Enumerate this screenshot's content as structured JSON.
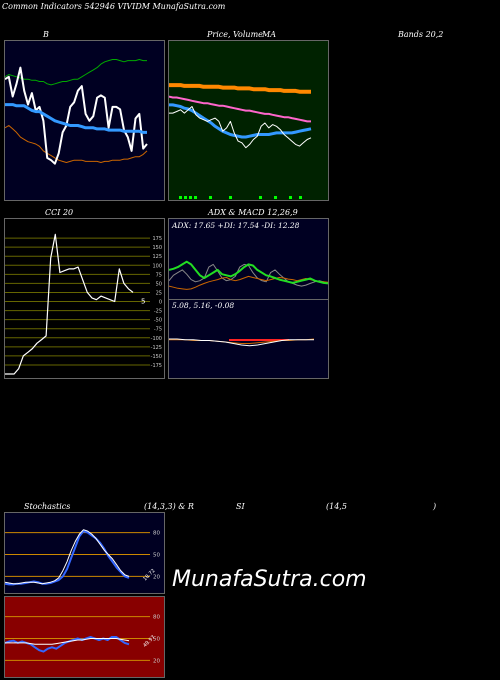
{
  "header": {
    "title": "Common Indicators 542946 VIVIDM MunafaSutra.com"
  },
  "labels": {
    "b": "B",
    "price": "Price,",
    "volume": "Volume",
    "ma": "MA",
    "bands": "Bands 20,2",
    "cci": "CCI 20",
    "adx": "ADX  & MACD 12,26,9",
    "stoch_a": "Stochastics",
    "stoch_b": "(14,3,3) & R",
    "rsi": "SI",
    "rsi_param": "(14,5",
    "rsi_close": ")"
  },
  "adx_readout": "ADX: 17.65  +DI: 17.54  -DI: 12.28",
  "macd_readout": "5.08,  5.16,  -0.08",
  "watermark": "MunafaSutra.com",
  "chart_data": [
    {
      "id": "bollinger",
      "type": "line",
      "title": "B",
      "colors": {
        "background": "#000022",
        "upper": "#00aa00",
        "lower": "#cc6600",
        "price": "#ffffff",
        "middle": "#3399ff"
      },
      "series": [
        {
          "values": [
            72,
            74,
            73,
            72,
            71,
            70,
            70,
            69,
            69,
            68,
            68,
            66,
            65,
            66,
            67,
            68,
            68,
            69,
            70,
            70,
            72,
            74,
            76,
            78,
            80,
            83,
            85,
            86,
            87,
            87,
            86,
            85,
            86,
            86,
            86,
            87,
            86,
            86
          ]
        },
        {
          "values": [
            28,
            30,
            27,
            24,
            20,
            18,
            16,
            15,
            14,
            12,
            8,
            6,
            4,
            2,
            0,
            -1,
            -2,
            -1,
            0,
            0,
            0,
            -1,
            -1,
            -1,
            -1,
            -2,
            -1,
            -1,
            0,
            0,
            0,
            1,
            1,
            2,
            3,
            3,
            5,
            8
          ]
        },
        {
          "values": [
            70,
            72,
            55,
            66,
            80,
            60,
            48,
            58,
            43,
            46,
            34,
            2,
            0,
            -3,
            6,
            24,
            30,
            46,
            50,
            60,
            64,
            40,
            34,
            38,
            54,
            56,
            54,
            28,
            46,
            46,
            44,
            26,
            20,
            8,
            36,
            40,
            10,
            14
          ]
        },
        {
          "values": [
            48,
            48,
            48,
            47,
            47,
            47,
            45,
            43,
            42,
            42,
            40,
            38,
            36,
            34,
            33,
            32,
            31,
            30,
            30,
            30,
            29,
            28,
            28,
            28,
            27,
            27,
            27,
            26,
            26,
            26,
            26,
            25,
            25,
            25,
            25,
            25,
            24,
            24
          ]
        }
      ]
    },
    {
      "id": "price_ma",
      "type": "line",
      "title": "Price, Volume MA",
      "colors": {
        "background": "#002200",
        "ema_long": "#ff8800",
        "price": "#ffffff",
        "ma_blue": "#3399ff",
        "ma_pink": "#ff66cc"
      },
      "series": [
        {
          "values": [
            80,
            80,
            80,
            80,
            79,
            79,
            79,
            79,
            79,
            78,
            78,
            78,
            78,
            78,
            77,
            77,
            77,
            77,
            76,
            76,
            76,
            76,
            75,
            75,
            75,
            75,
            74,
            74,
            74,
            74,
            73,
            73,
            73,
            73,
            72,
            72,
            72,
            72
          ]
        },
        {
          "values": [
            66,
            65,
            65,
            64,
            63,
            62,
            61,
            60,
            59,
            58,
            58,
            57,
            56,
            55,
            55,
            54,
            53,
            52,
            51,
            50,
            49,
            49,
            48,
            47,
            46,
            45,
            45,
            44,
            43,
            42,
            41,
            41,
            40,
            39,
            38,
            37,
            36,
            36
          ]
        },
        {
          "values": [
            56,
            56,
            55,
            54,
            52,
            51,
            49,
            46,
            43,
            40,
            37,
            34,
            30,
            27,
            24,
            22,
            20,
            19,
            18,
            17,
            17,
            18,
            19,
            20,
            20,
            20,
            20,
            21,
            22,
            22,
            22,
            22,
            22,
            23,
            24,
            25,
            26,
            27
          ]
        },
        {
          "values": [
            46,
            46,
            48,
            50,
            46,
            50,
            54,
            44,
            40,
            38,
            36,
            38,
            40,
            36,
            24,
            28,
            36,
            22,
            12,
            10,
            4,
            8,
            14,
            18,
            30,
            34,
            28,
            32,
            30,
            26,
            20,
            16,
            12,
            8,
            6,
            10,
            14,
            16
          ]
        }
      ]
    },
    {
      "id": "cci",
      "type": "line",
      "title": "CCI 20",
      "colors": {
        "background": "#000000",
        "grid": "#666600",
        "line": "#ffffff"
      },
      "ylim": [
        -200,
        200
      ],
      "ticks": [
        175,
        150,
        125,
        100,
        75,
        50,
        25,
        0,
        -25,
        -50,
        -75,
        -100,
        -125,
        -150,
        -175
      ],
      "current_label": "5",
      "series": [
        {
          "values": [
            -200,
            -200,
            -200,
            -185,
            -150,
            -140,
            -130,
            -115,
            -105,
            -95,
            120,
            185,
            80,
            85,
            90,
            90,
            95,
            60,
            25,
            10,
            5,
            15,
            10,
            5,
            0,
            90,
            50,
            35,
            25
          ]
        }
      ]
    },
    {
      "id": "adx",
      "type": "line",
      "title": "ADX",
      "colors": {
        "background": "#000022",
        "adx": "#22dd22",
        "plus_di": "#888888",
        "minus_di": "#cc6600"
      },
      "series": [
        {
          "values": [
            50,
            52,
            55,
            60,
            65,
            60,
            50,
            40,
            35,
            40,
            45,
            50,
            42,
            40,
            38,
            42,
            48,
            55,
            60,
            58,
            50,
            45,
            40,
            38,
            35,
            32,
            30,
            28,
            26,
            28,
            30,
            32,
            34,
            30,
            28,
            26,
            25
          ]
        },
        {
          "values": [
            30,
            40,
            45,
            50,
            42,
            32,
            28,
            30,
            35,
            55,
            60,
            48,
            35,
            30,
            32,
            38,
            55,
            60,
            58,
            45,
            35,
            30,
            28,
            45,
            50,
            42,
            35,
            28,
            25,
            22,
            20,
            22,
            25,
            28,
            30,
            28,
            26
          ]
        },
        {
          "values": [
            20,
            18,
            16,
            15,
            14,
            15,
            18,
            22,
            25,
            28,
            30,
            32,
            35,
            36,
            32,
            30,
            32,
            35,
            38,
            36,
            34,
            32,
            30,
            32,
            34,
            36,
            35,
            33,
            32,
            30,
            32,
            34,
            32,
            30,
            28,
            28,
            27
          ]
        }
      ]
    },
    {
      "id": "macd",
      "type": "line",
      "title": "MACD 12,26,9",
      "colors": {
        "background": "#000022",
        "macd": "#ffffff",
        "signal": "#cc6600",
        "hist": "#ff2222"
      },
      "series": [
        {
          "values": [
            5.2,
            5.2,
            5.1,
            5.1,
            5.0,
            5.0,
            4.9,
            4.8,
            4.6,
            4.4,
            4.3,
            4.4,
            4.6,
            4.8,
            5.0,
            5.1,
            5.1,
            5.1,
            5.1
          ]
        },
        {
          "values": [
            5.1,
            5.1,
            5.1,
            5.0,
            5.0,
            5.0,
            4.9,
            4.8,
            4.7,
            4.6,
            4.6,
            4.7,
            4.8,
            4.9,
            5.0,
            5.0,
            5.1,
            5.1,
            5.2
          ]
        }
      ]
    },
    {
      "id": "stochastics",
      "type": "line",
      "title": "Stochastics (14,3,3)",
      "colors": {
        "background": "#000022",
        "grid": "#cc8800",
        "k": "#3366ff",
        "d": "#ffffff"
      },
      "ylim": [
        0,
        100
      ],
      "ticks": [
        80,
        50,
        20
      ],
      "current_label": "18.72",
      "series": [
        {
          "values": [
            10,
            9,
            9,
            10,
            10,
            11,
            12,
            13,
            12,
            10,
            10,
            11,
            13,
            15,
            20,
            30,
            45,
            60,
            75,
            82,
            80,
            76,
            72,
            66,
            58,
            48,
            40,
            32,
            26,
            20,
            18
          ]
        },
        {
          "values": [
            12,
            11,
            10,
            10,
            11,
            12,
            12,
            12,
            11,
            10,
            11,
            12,
            14,
            18,
            28,
            40,
            55,
            68,
            78,
            84,
            82,
            78,
            72,
            64,
            56,
            50,
            44,
            36,
            28,
            22,
            20
          ]
        }
      ]
    },
    {
      "id": "rsi",
      "type": "line",
      "title": "RSI (14,5)",
      "colors": {
        "background": "#880000",
        "grid": "#cc8800",
        "rsi": "#3366ff",
        "avg": "#ffffff"
      },
      "ylim": [
        0,
        100
      ],
      "ticks": [
        80,
        50,
        20
      ],
      "current_label": "49.97",
      "series": [
        {
          "values": [
            44,
            46,
            47,
            44,
            46,
            44,
            42,
            38,
            34,
            32,
            36,
            38,
            36,
            40,
            44,
            46,
            48,
            50,
            48,
            50,
            52,
            50,
            48,
            50,
            48,
            52,
            52,
            48,
            44,
            42
          ]
        },
        {
          "values": [
            44,
            44,
            44,
            44,
            44,
            44,
            43,
            42,
            42,
            42,
            42,
            42,
            43,
            44,
            45,
            46,
            47,
            48,
            48,
            49,
            50,
            50,
            50,
            50,
            50,
            50,
            50,
            49,
            48,
            47
          ]
        }
      ]
    }
  ]
}
